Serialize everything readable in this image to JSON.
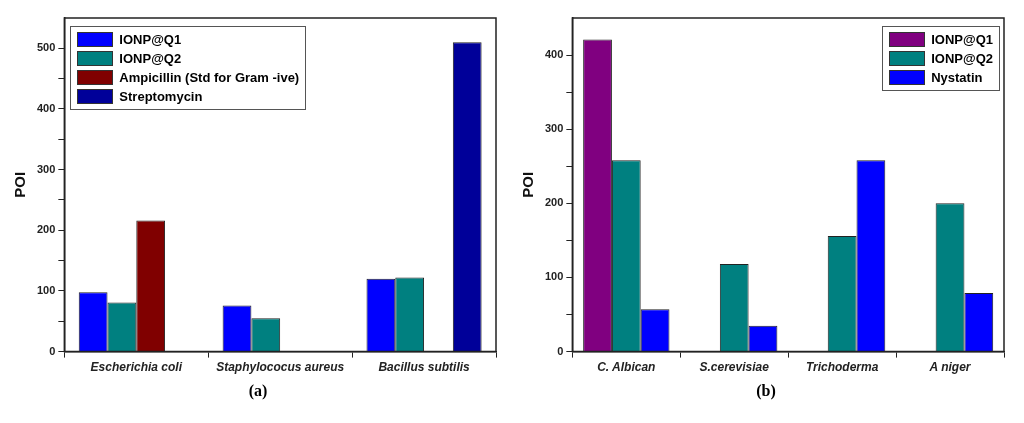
{
  "chart_data": [
    {
      "type": "bar",
      "ylabel": "POI",
      "categories": [
        "Escherichia coli",
        "Staphylococus aureus",
        "Bacillus subtilis"
      ],
      "series": [
        {
          "name": "IONP@Q1",
          "color": "#0000ff",
          "values": [
            98,
            76,
            120
          ]
        },
        {
          "name": "IONP@Q2",
          "color": "#008080",
          "values": [
            81,
            55,
            122
          ]
        },
        {
          "name": "Ampicillin (Std for Gram -ive)",
          "color": "#800000",
          "values": [
            216,
            null,
            null
          ]
        },
        {
          "name": "Streptomycin",
          "color": "#000099",
          "values": [
            null,
            null,
            510
          ]
        }
      ],
      "ylim": [
        0,
        550
      ],
      "yticks": [
        0,
        {
          "value": 50,
          "label": null
        },
        100,
        {
          "value": 150,
          "label": null
        },
        200,
        {
          "value": 250,
          "label": null
        },
        300,
        {
          "value": 350,
          "label": null
        },
        400,
        {
          "value": 450,
          "label": null
        },
        500
      ],
      "legend": "top left",
      "annotations": [
        "(a)"
      ]
    },
    {
      "type": "bar",
      "ylabel": "POI",
      "categories": [
        "C. Albican",
        "S.cerevisiae",
        "Trichoderma",
        "A niger"
      ],
      "series": [
        {
          "name": "IONP@Q1",
          "color": "#800080",
          "values": [
            421,
            null,
            null,
            null
          ]
        },
        {
          "name": "IONP@Q2",
          "color": "#008080",
          "values": [
            258,
            118,
            156,
            200
          ]
        },
        {
          "name": "Nystatin",
          "color": "#0000ff",
          "values": [
            57,
            35,
            258,
            79
          ]
        }
      ],
      "ylim": [
        0,
        450
      ],
      "yticks": [
        0,
        {
          "value": 50,
          "label": null
        },
        100,
        {
          "value": 150,
          "label": null
        },
        200,
        {
          "value": 250,
          "label": null
        },
        300,
        {
          "value": 350,
          "label": null
        },
        400
      ],
      "legend": "top right",
      "annotations": [
        "(b)"
      ]
    }
  ]
}
